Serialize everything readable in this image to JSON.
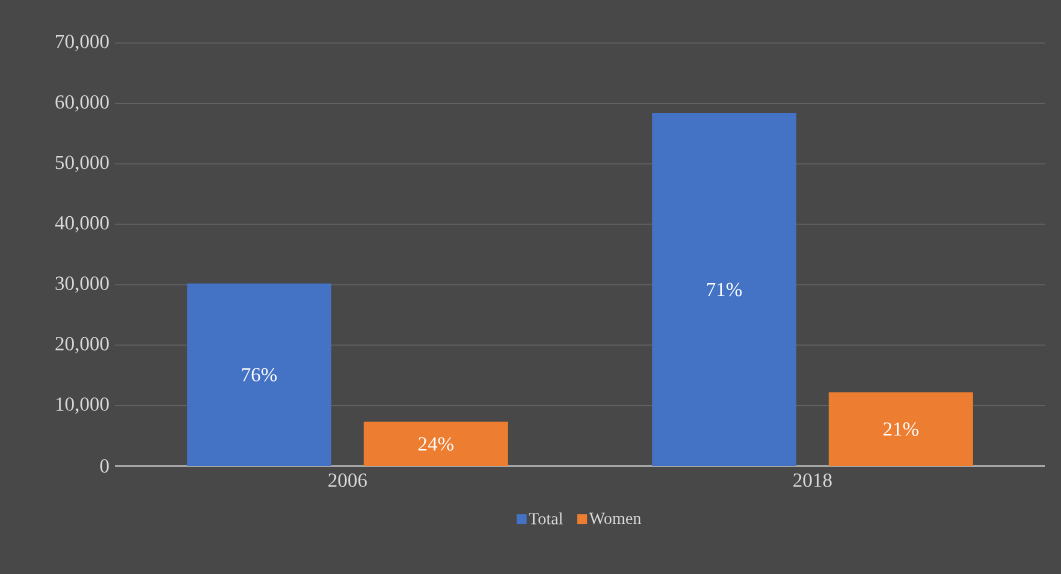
{
  "chart_data": {
    "type": "bar",
    "categories": [
      "2006",
      "2018"
    ],
    "series": [
      {
        "name": "Total",
        "color": "#4472c4",
        "values": [
          30200,
          58400
        ]
      },
      {
        "name": "Women",
        "color": "#ed7d31",
        "values": [
          7300,
          12200
        ]
      }
    ],
    "annotations": [
      "76%",
      "24%",
      "71%",
      "21%"
    ],
    "ylim": [
      0,
      70000
    ],
    "yticks": [
      {
        "value": 0,
        "label": "0"
      },
      {
        "value": 10000,
        "label": "10,000"
      },
      {
        "value": 20000,
        "label": "20,000"
      },
      {
        "value": 30000,
        "label": "30,000"
      },
      {
        "value": 40000,
        "label": "40,000"
      },
      {
        "value": 50000,
        "label": "50,000"
      },
      {
        "value": 60000,
        "label": "60,000"
      },
      {
        "value": 70000,
        "label": "70,000"
      }
    ],
    "grid": "y",
    "legend": "bottom"
  }
}
